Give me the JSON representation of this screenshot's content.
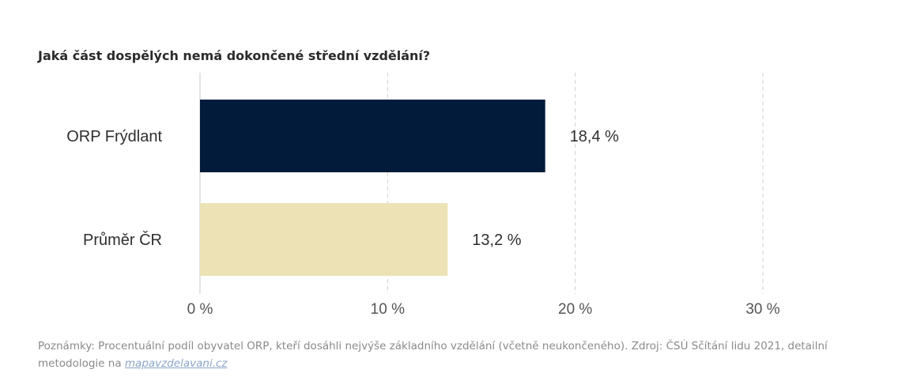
{
  "title": "Jaká část dospělých nemá dokončené střední vzdělání?",
  "chart_data": {
    "type": "bar",
    "orientation": "horizontal",
    "categories": [
      "ORP Frýdlant",
      "Průměr ČR"
    ],
    "values": [
      18.4,
      13.2
    ],
    "value_labels": [
      "18,4 %",
      "13,2 %"
    ],
    "colors": [
      "#031b3a",
      "#ece2b5"
    ],
    "xlim": [
      0,
      30
    ],
    "ticks": [
      0,
      10,
      20,
      30
    ],
    "tick_labels": [
      "0 %",
      "10 %",
      "20 %",
      "30 %"
    ],
    "grid": true,
    "xlabel": "",
    "ylabel": ""
  },
  "note": {
    "text": "Poznámky: Procentuální podíl obyvatel ORP, kteří dosáhli nejvýše základního vzdělání (včetně neukončeného). Zdroj: ČSÚ Sčítání lidu 2021, detailní metodologie na ",
    "link_text": "mapavzdelavani.cz"
  }
}
